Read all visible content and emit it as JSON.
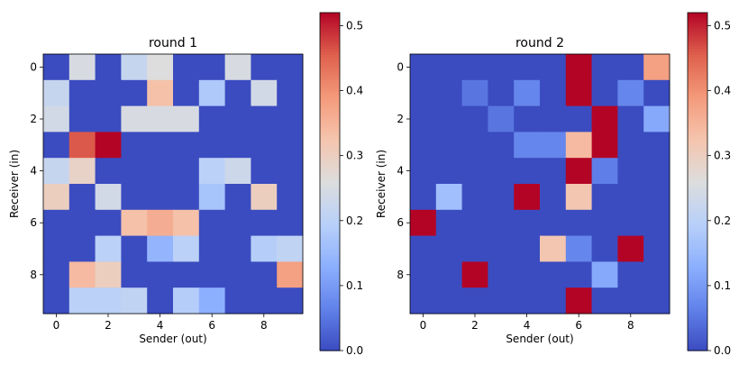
{
  "chart_data": [
    {
      "type": "heatmap",
      "title": "round 1",
      "xlabel": "Sender (out)",
      "ylabel": "Receiver (in)",
      "x_ticks": [
        "0",
        "2",
        "4",
        "6",
        "8"
      ],
      "y_ticks": [
        "0",
        "2",
        "4",
        "6",
        "8"
      ],
      "colormap": "coolwarm",
      "vmin": 0.0,
      "vmax": 0.52,
      "colorbar_ticks": [
        "0.0",
        "0.1",
        "0.2",
        "0.3",
        "0.4",
        "0.5"
      ],
      "values": [
        [
          0,
          0.25,
          0,
          0.22,
          0.26,
          0,
          0,
          0.25,
          0,
          0
        ],
        [
          0.22,
          0,
          0,
          0,
          0.33,
          0,
          0.18,
          0,
          0.24,
          0
        ],
        [
          0.24,
          0,
          0,
          0.25,
          0.25,
          0.25,
          0,
          0,
          0,
          0
        ],
        [
          0,
          0.46,
          0.52,
          0,
          0,
          0,
          0,
          0,
          0,
          0
        ],
        [
          0.22,
          0.29,
          0,
          0,
          0,
          0,
          0.2,
          0.23,
          0,
          0
        ],
        [
          0.3,
          0,
          0.24,
          0,
          0,
          0,
          0.17,
          0,
          0.3,
          0
        ],
        [
          0,
          0,
          0,
          0.33,
          0.36,
          0.33,
          0,
          0,
          0,
          0
        ],
        [
          0,
          0,
          0.2,
          0,
          0.14,
          0.2,
          0,
          0,
          0.19,
          0.21
        ],
        [
          0,
          0.34,
          0.3,
          0,
          0,
          0,
          0,
          0,
          0,
          0.38
        ],
        [
          0,
          0.2,
          0.2,
          0.21,
          0,
          0.19,
          0.13,
          0,
          0,
          0
        ]
      ]
    },
    {
      "type": "heatmap",
      "title": "round 2",
      "xlabel": "Sender (out)",
      "ylabel": "Receiver (in)",
      "x_ticks": [
        "0",
        "2",
        "4",
        "6",
        "8"
      ],
      "y_ticks": [
        "0",
        "2",
        "4",
        "6",
        "8"
      ],
      "colormap": "coolwarm",
      "vmin": 0.0,
      "vmax": 0.52,
      "colorbar_ticks": [
        "0.0",
        "0.1",
        "0.2",
        "0.3",
        "0.4",
        "0.5"
      ],
      "values": [
        [
          0,
          0,
          0,
          0,
          0,
          0,
          0.52,
          0,
          0,
          0.38
        ],
        [
          0,
          0,
          0.05,
          0,
          0.07,
          0,
          0.52,
          0,
          0.07,
          0
        ],
        [
          0,
          0,
          0,
          0.05,
          0,
          0,
          0,
          0.52,
          0,
          0.12
        ],
        [
          0,
          0,
          0,
          0,
          0.07,
          0.07,
          0.34,
          0.52,
          0,
          0
        ],
        [
          0,
          0,
          0,
          0,
          0,
          0,
          0.52,
          0.06,
          0,
          0
        ],
        [
          0,
          0.16,
          0,
          0,
          0.52,
          0,
          0.32,
          0,
          0,
          0
        ],
        [
          0.52,
          0,
          0,
          0,
          0,
          0,
          0,
          0,
          0,
          0
        ],
        [
          0,
          0,
          0,
          0,
          0,
          0.32,
          0.07,
          0,
          0.52,
          0
        ],
        [
          0,
          0,
          0.52,
          0,
          0,
          0,
          0,
          0.12,
          0,
          0
        ],
        [
          0,
          0,
          0,
          0,
          0,
          0,
          0.52,
          0,
          0,
          0
        ]
      ]
    }
  ]
}
